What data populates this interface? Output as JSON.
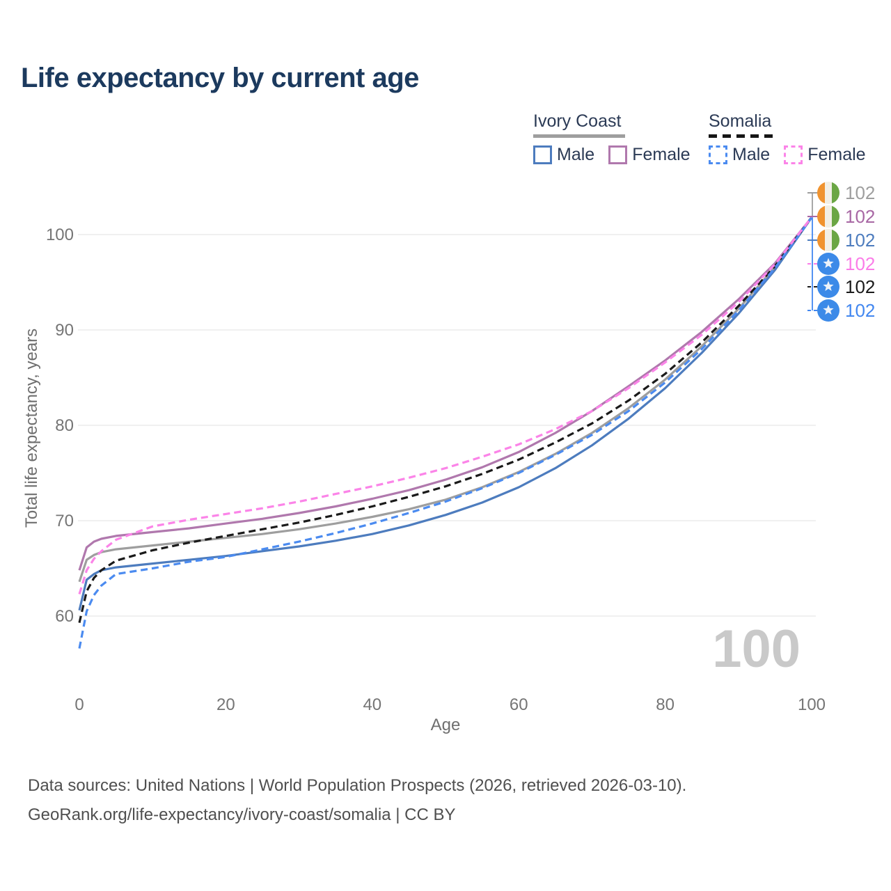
{
  "title": "Life expectancy by current age",
  "legend": {
    "groups": [
      {
        "label": "Ivory Coast",
        "line_style": "solid",
        "line_color": "#9e9e9e"
      },
      {
        "label": "Somalia",
        "line_style": "dashed",
        "line_color": "#161616"
      }
    ],
    "items": [
      {
        "label": "Male",
        "country": "Ivory Coast",
        "swatch_style": "solid",
        "swatch_color": "#4d7cbe"
      },
      {
        "label": "Female",
        "country": "Ivory Coast",
        "swatch_style": "solid",
        "swatch_color": "#b078ad"
      },
      {
        "label": "Male",
        "country": "Somalia",
        "swatch_style": "dashed",
        "swatch_color": "#4b8bf0"
      },
      {
        "label": "Female",
        "country": "Somalia",
        "swatch_style": "dashed",
        "swatch_color": "#fb84e8"
      }
    ]
  },
  "watermark": "100",
  "end_labels": [
    {
      "value": "102",
      "flag": "ivory-coast",
      "color": "#9e9e9e",
      "series": "Ivory Coast - both sexes"
    },
    {
      "value": "102",
      "flag": "ivory-coast",
      "color": "#a867a4",
      "series": "Ivory Coast - female"
    },
    {
      "value": "102",
      "flag": "ivory-coast",
      "color": "#4d7cbe",
      "series": "Ivory Coast - male"
    },
    {
      "value": "102",
      "flag": "somalia",
      "color": "#fb7ce8",
      "series": "Somalia - female"
    },
    {
      "value": "102",
      "flag": "somalia",
      "color": "#1a1a1a",
      "series": "Somalia - both sexes"
    },
    {
      "value": "102",
      "flag": "somalia",
      "color": "#4287f0",
      "series": "Somalia - male"
    }
  ],
  "footer": {
    "line1": "Data sources: United Nations | World Population Prospects (2026, retrieved 2026-03-10).",
    "line2": "GeoRank.org/life-expectancy/ivory-coast/somalia | CC BY"
  },
  "chart_data": {
    "type": "line",
    "title": "Life expectancy by current age",
    "xlabel": "Age",
    "ylabel": "Total life expectancy, years",
    "x_ticks": [
      0,
      20,
      40,
      60,
      80,
      100
    ],
    "y_ticks": [
      60,
      70,
      80,
      90,
      100
    ],
    "xlim": [
      0,
      100
    ],
    "ylim": [
      56,
      104
    ],
    "grid": "horizontal",
    "legend_position": "top-right",
    "x": [
      0,
      1,
      2,
      3,
      5,
      10,
      15,
      20,
      25,
      30,
      35,
      40,
      45,
      50,
      55,
      60,
      65,
      70,
      75,
      80,
      85,
      90,
      95,
      100
    ],
    "series": [
      {
        "name": "Ivory Coast - both sexes",
        "color": "#9e9e9e",
        "dash": false,
        "values": [
          63.6,
          65.9,
          66.4,
          66.7,
          67.0,
          67.4,
          67.8,
          68.2,
          68.6,
          69.1,
          69.7,
          70.4,
          71.2,
          72.2,
          73.5,
          75.1,
          77.0,
          79.2,
          81.8,
          84.8,
          88.3,
          92.2,
          96.6,
          101.8
        ]
      },
      {
        "name": "Ivory Coast - male",
        "color": "#4d7cbe",
        "dash": false,
        "values": [
          60.6,
          63.8,
          64.4,
          64.8,
          65.1,
          65.5,
          65.9,
          66.3,
          66.8,
          67.3,
          67.9,
          68.6,
          69.5,
          70.6,
          71.9,
          73.5,
          75.5,
          77.9,
          80.7,
          83.9,
          87.6,
          91.7,
          96.3,
          101.8
        ]
      },
      {
        "name": "Ivory Coast - female",
        "color": "#b078ad",
        "dash": false,
        "values": [
          64.8,
          67.2,
          67.8,
          68.1,
          68.4,
          68.8,
          69.2,
          69.7,
          70.2,
          70.8,
          71.5,
          72.3,
          73.2,
          74.3,
          75.6,
          77.2,
          79.2,
          81.5,
          84.1,
          86.8,
          89.8,
          93.2,
          97.0,
          101.8
        ]
      },
      {
        "name": "Somalia - both sexes",
        "color": "#1a1a1a",
        "dash": true,
        "values": [
          59.3,
          62.6,
          64.0,
          64.8,
          65.8,
          66.9,
          67.7,
          68.4,
          69.1,
          69.8,
          70.6,
          71.5,
          72.5,
          73.6,
          74.9,
          76.4,
          78.2,
          80.2,
          82.6,
          85.4,
          88.7,
          92.5,
          96.7,
          101.8
        ]
      },
      {
        "name": "Somalia - male",
        "color": "#4b8bf0",
        "dash": true,
        "values": [
          56.6,
          60.5,
          62.2,
          63.2,
          64.4,
          65.0,
          65.7,
          66.2,
          67.0,
          67.8,
          68.7,
          69.7,
          70.8,
          72.0,
          73.4,
          75.0,
          76.9,
          79.0,
          81.5,
          84.5,
          88.0,
          92.0,
          96.5,
          101.8
        ]
      },
      {
        "name": "Somalia - female",
        "color": "#fb84e8",
        "dash": true,
        "values": [
          62.3,
          64.8,
          66.0,
          66.8,
          68.0,
          69.4,
          70.1,
          70.7,
          71.3,
          72.0,
          72.8,
          73.6,
          74.5,
          75.5,
          76.7,
          78.0,
          79.6,
          81.5,
          83.9,
          86.6,
          89.5,
          92.9,
          96.9,
          101.8
        ]
      }
    ],
    "end_value_label": "102"
  }
}
